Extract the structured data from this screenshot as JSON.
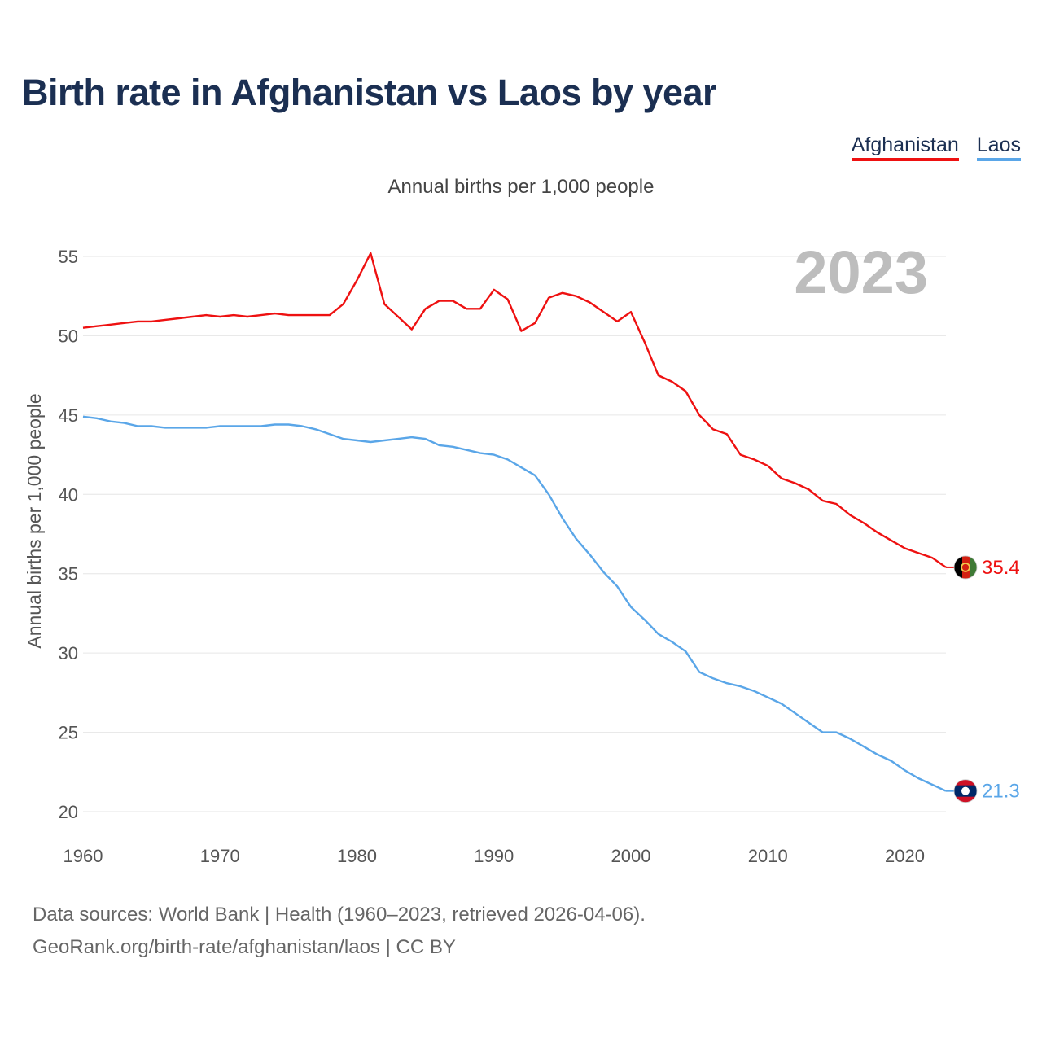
{
  "header": {
    "title": "Birth rate in Afghanistan vs Laos by year",
    "subtitle": "Annual births per 1,000 people"
  },
  "legend": {
    "items": [
      {
        "label": "Afghanistan",
        "color": "#ee1111"
      },
      {
        "label": "Laos",
        "color": "#5aa6e8"
      }
    ]
  },
  "footer": {
    "line1": "Data sources: World Bank | Health (1960–2023, retrieved 2026-04-06).",
    "line2": "GeoRank.org/birth-rate/afghanistan/laos | CC BY"
  },
  "chart_data": {
    "type": "line",
    "title": "Birth rate in Afghanistan vs Laos by year",
    "subtitle": "Annual births per 1,000 people",
    "xlabel": "",
    "ylabel": "Annual births per 1,000 people",
    "current_year_label": "2023",
    "xlim": [
      1960,
      2023
    ],
    "ylim": [
      20,
      55
    ],
    "x_ticks": [
      1960,
      1970,
      1980,
      1990,
      2000,
      2010,
      2020
    ],
    "y_ticks": [
      20,
      25,
      30,
      35,
      40,
      45,
      50,
      55
    ],
    "grid": true,
    "legend_position": "top-right",
    "x": [
      1960,
      1961,
      1962,
      1963,
      1964,
      1965,
      1966,
      1967,
      1968,
      1969,
      1970,
      1971,
      1972,
      1973,
      1974,
      1975,
      1976,
      1977,
      1978,
      1979,
      1980,
      1981,
      1982,
      1983,
      1984,
      1985,
      1986,
      1987,
      1988,
      1989,
      1990,
      1991,
      1992,
      1993,
      1994,
      1995,
      1996,
      1997,
      1998,
      1999,
      2000,
      2001,
      2002,
      2003,
      2004,
      2005,
      2006,
      2007,
      2008,
      2009,
      2010,
      2011,
      2012,
      2013,
      2014,
      2015,
      2016,
      2017,
      2018,
      2019,
      2020,
      2021,
      2022,
      2023
    ],
    "series": [
      {
        "name": "Afghanistan",
        "color": "#ee1111",
        "end_label": "35.4",
        "values": [
          50.5,
          50.6,
          50.7,
          50.8,
          50.9,
          50.9,
          51.0,
          51.1,
          51.2,
          51.3,
          51.2,
          51.3,
          51.2,
          51.3,
          51.4,
          51.3,
          51.3,
          51.3,
          51.3,
          52.0,
          53.5,
          55.2,
          52.0,
          51.2,
          50.4,
          51.7,
          52.2,
          52.2,
          51.7,
          51.7,
          52.9,
          52.3,
          50.3,
          50.8,
          52.4,
          52.7,
          52.5,
          52.1,
          51.5,
          50.9,
          51.5,
          49.6,
          47.5,
          47.1,
          46.5,
          45.0,
          44.1,
          43.8,
          42.5,
          42.2,
          41.8,
          41.0,
          40.7,
          40.3,
          39.6,
          39.4,
          38.7,
          38.2,
          37.6,
          37.1,
          36.6,
          36.3,
          36.0,
          35.4
        ]
      },
      {
        "name": "Laos",
        "color": "#5aa6e8",
        "end_label": "21.3",
        "values": [
          44.9,
          44.8,
          44.6,
          44.5,
          44.3,
          44.3,
          44.2,
          44.2,
          44.2,
          44.2,
          44.3,
          44.3,
          44.3,
          44.3,
          44.4,
          44.4,
          44.3,
          44.1,
          43.8,
          43.5,
          43.4,
          43.3,
          43.4,
          43.5,
          43.6,
          43.5,
          43.1,
          43.0,
          42.8,
          42.6,
          42.5,
          42.2,
          41.7,
          41.2,
          40.0,
          38.5,
          37.2,
          36.2,
          35.1,
          34.2,
          32.9,
          32.1,
          31.2,
          30.7,
          30.1,
          28.8,
          28.4,
          28.1,
          27.9,
          27.6,
          27.2,
          26.8,
          26.2,
          25.6,
          25.0,
          25.0,
          24.6,
          24.1,
          23.6,
          23.2,
          22.6,
          22.1,
          21.7,
          21.3
        ]
      }
    ]
  }
}
